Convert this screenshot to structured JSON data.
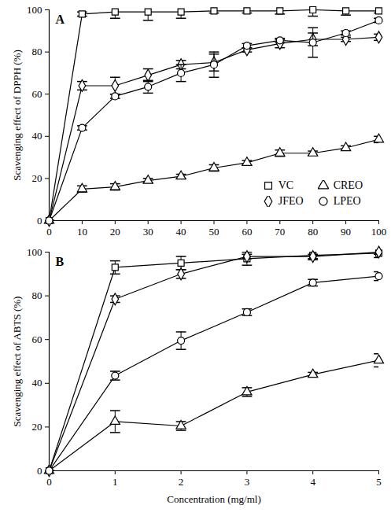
{
  "chart_data": [
    {
      "type": "line",
      "title": "A",
      "ylabel": "Scavenging effect of DPPH (%)",
      "x": [
        0,
        10,
        20,
        30,
        40,
        50,
        60,
        70,
        80,
        90,
        100
      ],
      "xlim": [
        0,
        100
      ],
      "xticks": [
        0,
        10,
        20,
        30,
        40,
        50,
        60,
        70,
        80,
        90,
        100
      ],
      "ylim": [
        0,
        100
      ],
      "yticks": [
        0,
        20,
        40,
        60,
        80,
        100
      ],
      "legend": "lower right",
      "series": [
        {
          "name": "VC",
          "color": "#000000",
          "marker": "square",
          "line_style": "solid",
          "values": [
            0,
            98,
            99,
            99,
            99,
            99.5,
            99.5,
            99.5,
            100,
            99.5,
            99.5
          ],
          "errors": [
            0,
            1,
            3,
            4,
            3,
            1,
            1,
            1.5,
            3,
            2,
            1
          ]
        },
        {
          "name": "CREO",
          "color": "#000000",
          "marker": "triangle",
          "line_style": "solid",
          "values": [
            0,
            15,
            16,
            19,
            21,
            25,
            27.5,
            32,
            32,
            34.5,
            38.5
          ],
          "errors": [
            0,
            1.5,
            1.5,
            1,
            1,
            1.5,
            1,
            1.5,
            1,
            1,
            1.5
          ]
        },
        {
          "name": "JFEO",
          "color": "#000000",
          "marker": "diamond",
          "line_style": "solid",
          "values": [
            0,
            64,
            64,
            69,
            74,
            75,
            81,
            84,
            86,
            86,
            87
          ],
          "errors": [
            0,
            2,
            4,
            3,
            2,
            4,
            1,
            2,
            3,
            1,
            1.5
          ]
        },
        {
          "name": "LPEO",
          "color": "#000000",
          "marker": "circle",
          "line_style": "solid",
          "values": [
            0,
            44,
            59,
            63.5,
            70,
            74,
            83,
            85.5,
            84.5,
            89,
            95
          ],
          "errors": [
            0,
            1,
            1,
            3,
            4,
            6,
            1,
            1,
            7,
            1,
            1
          ]
        }
      ]
    },
    {
      "type": "line",
      "title": "B",
      "ylabel": "Scavenging effect of ABTS (%)",
      "xlabel": "Concentration (mg/ml)",
      "x": [
        0,
        1,
        2,
        3,
        4,
        5
      ],
      "xlim": [
        0,
        5
      ],
      "xticks": [
        0,
        1,
        2,
        3,
        4,
        5
      ],
      "ylim": [
        0,
        100
      ],
      "yticks": [
        0,
        20,
        40,
        60,
        80,
        100
      ],
      "series": [
        {
          "name": "VC",
          "color": "#000000",
          "marker": "square",
          "line_style": "solid",
          "values": [
            0,
            93,
            95,
            97,
            98.5,
            99.5
          ],
          "errors": [
            0,
            3,
            3,
            3,
            2,
            2
          ]
        },
        {
          "name": "CREO",
          "color": "#000000",
          "marker": "triangle",
          "line_style": "solid",
          "values": [
            0,
            22.5,
            20.5,
            36,
            44,
            50.5
          ],
          "errors": [
            0,
            5,
            2,
            2,
            1,
            3
          ]
        },
        {
          "name": "JFEO",
          "color": "#000000",
          "marker": "diamond",
          "line_style": "solid",
          "values": [
            0,
            78.5,
            90,
            98,
            98,
            100
          ],
          "errors": [
            0,
            1.5,
            2,
            1,
            1,
            1
          ]
        },
        {
          "name": "LPEO",
          "color": "#000000",
          "marker": "circle",
          "line_style": "solid",
          "values": [
            0,
            43.5,
            59.5,
            72.5,
            86,
            89
          ],
          "errors": [
            0,
            2,
            4,
            1.5,
            1.5,
            2
          ]
        }
      ]
    }
  ]
}
